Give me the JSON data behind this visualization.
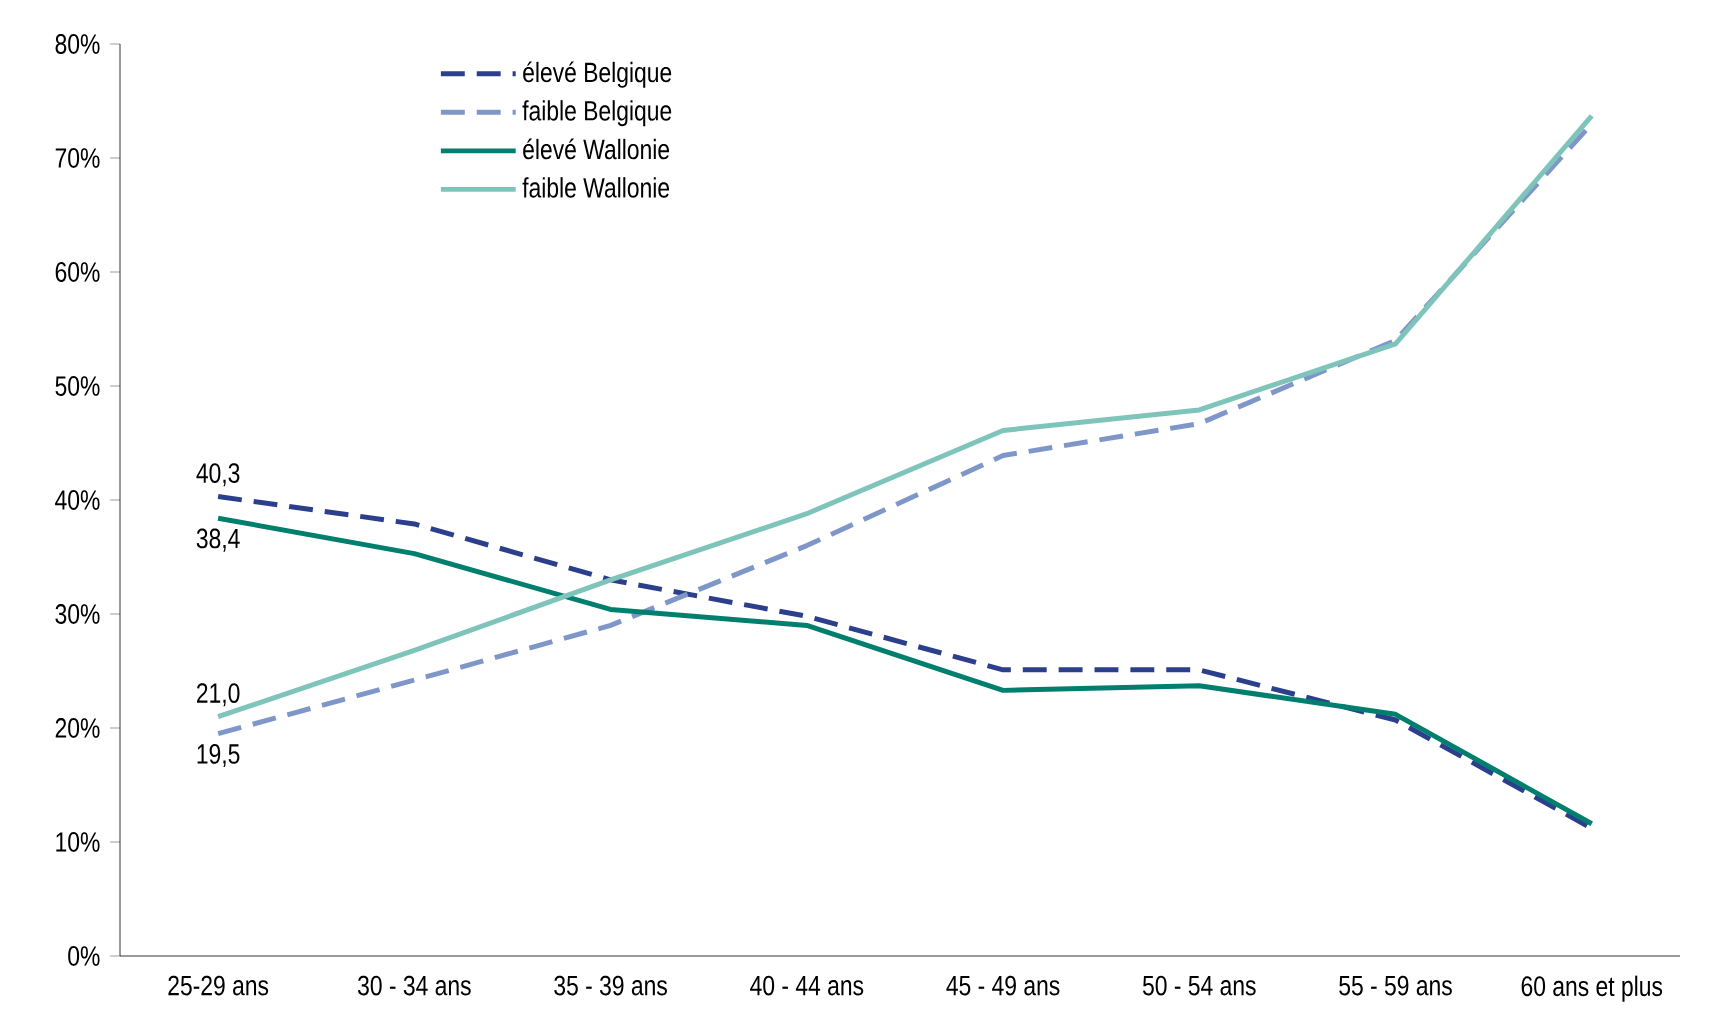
{
  "chart_data": {
    "type": "line",
    "categories": [
      "25-29 ans",
      "30 - 34 ans",
      "35 - 39 ans",
      "40 - 44 ans",
      "45 - 49 ans",
      "50 - 54 ans",
      "55 - 59 ans",
      "60 ans et plus"
    ],
    "series": [
      {
        "name": "élevé Belgique",
        "color": "#2b3f8c",
        "line_style": "dashed",
        "values": [
          40.3,
          37.9,
          33.0,
          29.8,
          25.1,
          25.1,
          20.7,
          11.2
        ],
        "value_labels": [
          "40,3",
          null,
          null,
          null,
          null,
          null,
          null,
          null
        ]
      },
      {
        "name": "faible Belgique",
        "color": "#7f97c8",
        "line_style": "dashed",
        "values": [
          19.5,
          24.2,
          29.0,
          36.0,
          43.9,
          46.7,
          54.0,
          73.0
        ],
        "value_labels": [
          "19,5",
          null,
          null,
          null,
          null,
          null,
          null,
          null
        ]
      },
      {
        "name": "élevé Wallonie",
        "color": "#007f6e",
        "line_style": "solid",
        "values": [
          38.4,
          35.3,
          30.4,
          29.0,
          23.3,
          23.7,
          21.2,
          11.6
        ],
        "value_labels": [
          "38,4",
          null,
          null,
          null,
          null,
          null,
          null,
          null
        ]
      },
      {
        "name": "faible Wallonie",
        "color": "#7fc4bb",
        "line_style": "solid",
        "values": [
          21.0,
          26.8,
          33.0,
          38.8,
          46.1,
          47.9,
          53.7,
          73.7
        ],
        "value_labels": [
          "21,0",
          null,
          null,
          null,
          null,
          null,
          null,
          null
        ]
      }
    ],
    "ylim": [
      0,
      80
    ],
    "yticks": [
      {
        "value": 0,
        "label": "0%"
      },
      {
        "value": 10,
        "label": "10%"
      },
      {
        "value": 20,
        "label": "20%"
      },
      {
        "value": 30,
        "label": "30%"
      },
      {
        "value": 40,
        "label": "40%"
      },
      {
        "value": 50,
        "label": "50%"
      },
      {
        "value": 60,
        "label": "60%"
      },
      {
        "value": 70,
        "label": "70%"
      },
      {
        "value": 80,
        "label": "80%"
      }
    ],
    "grid": false,
    "legend": "top",
    "marker": "none"
  }
}
